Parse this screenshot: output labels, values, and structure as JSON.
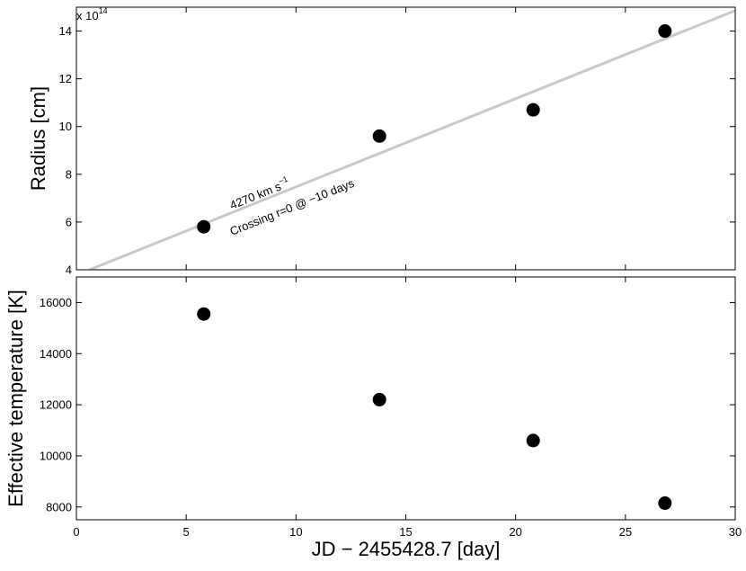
{
  "chart_data": [
    {
      "type": "scatter",
      "title": "",
      "xlabel": "",
      "ylabel": "Radius [cm]",
      "y_multiplier_label": "x 10",
      "y_multiplier_exponent": "14",
      "xlim": [
        0,
        30
      ],
      "ylim": [
        4,
        15
      ],
      "xticks": [
        0,
        5,
        10,
        15,
        20,
        25,
        30
      ],
      "yticks": [
        4,
        6,
        8,
        10,
        12,
        14
      ],
      "grid": false,
      "series": [
        {
          "x": [
            5.8,
            13.8,
            20.8,
            26.8
          ],
          "y": [
            5.8,
            9.6,
            10.7,
            14.0
          ]
        }
      ],
      "fit_line": {
        "type": "line",
        "color": "#c8c8c8",
        "x": [
          0.6,
          30
        ],
        "y": [
          4.0,
          14.86
        ]
      },
      "annotations": [
        {
          "text": "4270 km s",
          "superscript": "−1"
        },
        {
          "text": "Crossing r=0 @ −10 days"
        }
      ],
      "marker_color": "#000000"
    },
    {
      "type": "scatter",
      "title": "",
      "xlabel": "JD − 2455428.7 [day]",
      "ylabel": "Effective temperature [K]",
      "xlim": [
        0,
        30
      ],
      "ylim": [
        7500,
        17000
      ],
      "xticks": [
        0,
        5,
        10,
        15,
        20,
        25,
        30
      ],
      "yticks": [
        8000,
        10000,
        12000,
        14000,
        16000
      ],
      "grid": false,
      "series": [
        {
          "x": [
            5.8,
            13.8,
            20.8,
            26.8
          ],
          "y": [
            15550,
            12200,
            10600,
            8150
          ]
        }
      ],
      "marker_color": "#000000"
    }
  ]
}
